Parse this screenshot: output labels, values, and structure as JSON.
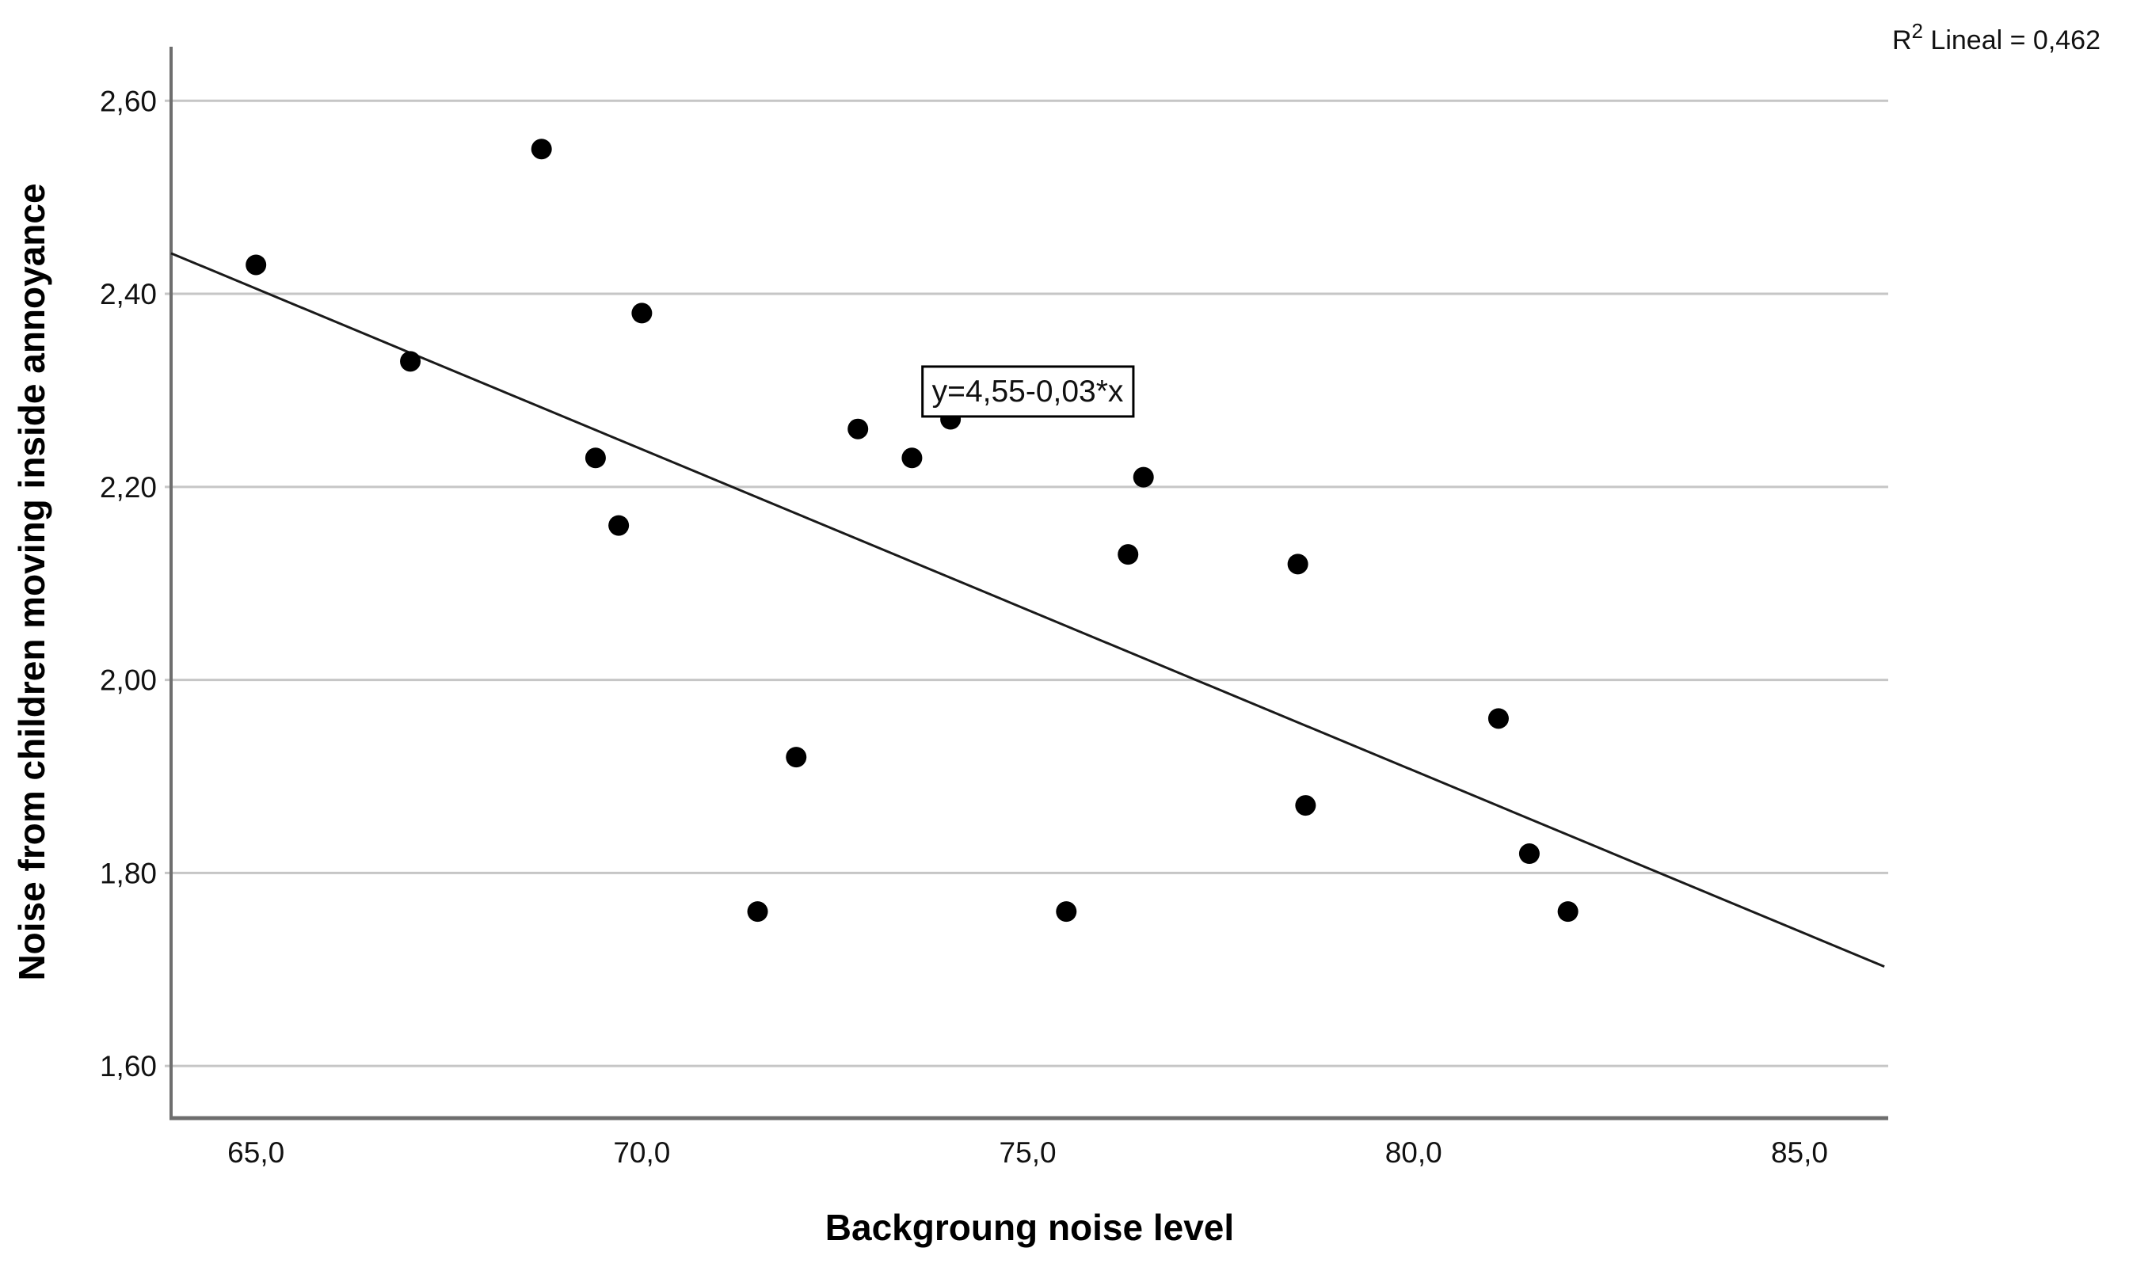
{
  "figure": {
    "background": "#ffffff"
  },
  "chart_data": {
    "type": "scatter",
    "title": "",
    "xlabel": "Backgroung noise level",
    "ylabel": "Noise from children moving inside annoyance",
    "x_axis": {
      "range": [
        63.9,
        86.15
      ],
      "ticks": [
        {
          "value": 65.0,
          "label": "65,0"
        },
        {
          "value": 70.0,
          "label": "70,0"
        },
        {
          "value": 75.0,
          "label": "75,0"
        },
        {
          "value": 80.0,
          "label": "80,0"
        },
        {
          "value": 85.0,
          "label": "85,0"
        }
      ]
    },
    "y_axis": {
      "range": [
        1.546,
        2.656
      ],
      "ticks": [
        {
          "value": 1.6,
          "label": "1,60"
        },
        {
          "value": 1.8,
          "label": "1,80"
        },
        {
          "value": 2.0,
          "label": "2,00"
        },
        {
          "value": 2.2,
          "label": "2,20"
        },
        {
          "value": 2.4,
          "label": "2,40"
        },
        {
          "value": 2.6,
          "label": "2,60"
        }
      ]
    },
    "grid": "horizontal",
    "legend": "none",
    "points": [
      {
        "x": 65.0,
        "y": 2.43
      },
      {
        "x": 67.0,
        "y": 2.33
      },
      {
        "x": 68.7,
        "y": 2.55
      },
      {
        "x": 69.4,
        "y": 2.23
      },
      {
        "x": 69.7,
        "y": 2.16
      },
      {
        "x": 70.0,
        "y": 2.38
      },
      {
        "x": 71.5,
        "y": 1.76
      },
      {
        "x": 72.0,
        "y": 1.92
      },
      {
        "x": 72.8,
        "y": 2.26
      },
      {
        "x": 73.5,
        "y": 2.23
      },
      {
        "x": 74.0,
        "y": 2.27
      },
      {
        "x": 75.5,
        "y": 1.76
      },
      {
        "x": 76.3,
        "y": 2.13
      },
      {
        "x": 76.5,
        "y": 2.21
      },
      {
        "x": 78.5,
        "y": 2.12
      },
      {
        "x": 78.6,
        "y": 1.87
      },
      {
        "x": 81.1,
        "y": 1.96
      },
      {
        "x": 81.5,
        "y": 1.82
      },
      {
        "x": 82.0,
        "y": 1.76
      }
    ],
    "regression_line": {
      "x1": 63.9,
      "y1": 2.442,
      "x2": 86.1,
      "y2": 1.703,
      "equation_label": "y=4,55-0,03*x",
      "label_anchor": {
        "x": 75.0,
        "y": 2.3
      }
    },
    "r2_label": {
      "base": "R",
      "sup": "2",
      "rest": " Lineal = 0,462"
    },
    "colors": {
      "point": "#000000",
      "line": "#1a1a1a",
      "grid": "#c6c6c6",
      "axis": "#6e6e6e",
      "annotation_border": "#000000",
      "annotation_fill": "#ffffff"
    }
  }
}
